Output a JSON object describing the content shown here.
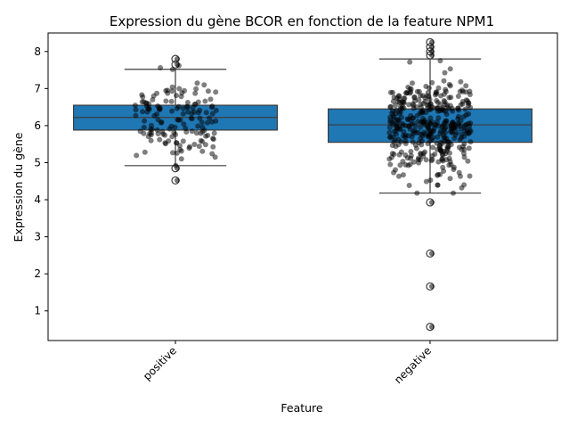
{
  "chart_data": {
    "type": "box",
    "title": "Expression du gène BCOR en fonction de la feature NPM1",
    "xlabel": "Feature",
    "ylabel": "Expression du gène",
    "ylim": [
      0.2,
      8.5
    ],
    "yticks": [
      1,
      2,
      3,
      4,
      5,
      6,
      7,
      8
    ],
    "categories": [
      "positive",
      "negative"
    ],
    "box_color": "#1f77b4",
    "point_color": "#000000",
    "boxes": [
      {
        "category": "positive",
        "whisker_low": 4.92,
        "q1": 5.88,
        "median": 6.22,
        "q3": 6.55,
        "whisker_high": 7.52,
        "outliers": [
          4.52,
          4.85,
          7.65,
          7.8
        ],
        "jitter_count": 150,
        "jitter_mean": 6.2,
        "jitter_sd": 0.55
      },
      {
        "category": "negative",
        "whisker_low": 4.18,
        "q1": 5.55,
        "median": 6.02,
        "q3": 6.45,
        "whisker_high": 7.8,
        "outliers": [
          0.57,
          1.66,
          2.55,
          3.93,
          7.9,
          8.0,
          8.12,
          8.25
        ],
        "jitter_count": 420,
        "jitter_mean": 6.0,
        "jitter_sd": 0.65
      }
    ]
  }
}
